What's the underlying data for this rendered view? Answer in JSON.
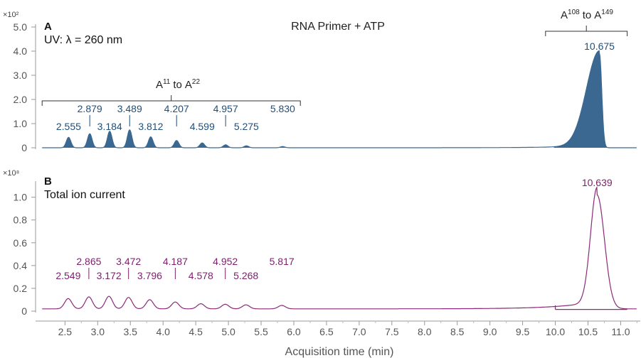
{
  "chart_data": {
    "title": "RNA Primer + ATP",
    "xlabel": "Acquisition time (min)",
    "xlim": [
      2.05,
      11.3
    ],
    "xticks": [
      "2.5",
      "3.0",
      "3.5",
      "4.0",
      "4.5",
      "5.0",
      "5.5",
      "6.0",
      "6.5",
      "7.0",
      "7.5",
      "8.0",
      "8.5",
      "9.0",
      "9.5",
      "10.0",
      "10.5",
      "11.0"
    ],
    "panels": [
      {
        "type": "line",
        "panel": "A",
        "subtitle": "UV: λ = 260 nm",
        "multiplier": "×10²",
        "color": "#3a6890",
        "label_color": "#1f4e79",
        "ylim": [
          0,
          5.0
        ],
        "yticks": [
          "0",
          "1.0",
          "2.0",
          "3.0",
          "4.0",
          "5.0"
        ],
        "peaks": [
          {
            "x": 2.555,
            "label": "2.555",
            "y": 0.43
          },
          {
            "x": 2.879,
            "label": "2.879",
            "y": 0.58
          },
          {
            "x": 3.184,
            "label": "3.184",
            "y": 0.68
          },
          {
            "x": 3.489,
            "label": "3.489",
            "y": 0.74
          },
          {
            "x": 3.812,
            "label": "3.812",
            "y": 0.45
          },
          {
            "x": 4.207,
            "label": "4.207",
            "y": 0.3
          },
          {
            "x": 4.599,
            "label": "4.599",
            "y": 0.2
          },
          {
            "x": 4.957,
            "label": "4.957",
            "y": 0.12
          },
          {
            "x": 5.275,
            "label": "5.275",
            "y": 0.08
          },
          {
            "x": 5.83,
            "label": "5.830",
            "y": 0.05
          },
          {
            "x": 10.675,
            "label": "10.675",
            "y": 3.9
          }
        ],
        "groups": [
          {
            "label_base_1": "A",
            "label_sup_1": "11",
            "label_mid": "to",
            "label_base_2": "A",
            "label_sup_2": "22",
            "x_start": 2.15,
            "x_end": 6.1
          },
          {
            "label_base_1": "A",
            "label_sup_1": "108",
            "label_mid": "to",
            "label_base_2": "A",
            "label_sup_2": "149",
            "x_start": 9.85,
            "x_end": 11.1
          }
        ]
      },
      {
        "type": "line",
        "panel": "B",
        "subtitle": "Total ion current",
        "multiplier": "×10⁸",
        "color": "#8b2a78",
        "label_color": "#7b1f6a",
        "ylim": [
          0,
          1.06
        ],
        "yticks": [
          "0",
          "0.2",
          "0.4",
          "0.6",
          "0.8",
          "1.0"
        ],
        "peaks": [
          {
            "x": 2.549,
            "label": "2.549",
            "y": 0.09
          },
          {
            "x": 2.865,
            "label": "2.865",
            "y": 0.105
          },
          {
            "x": 3.172,
            "label": "3.172",
            "y": 0.11
          },
          {
            "x": 3.472,
            "label": "3.472",
            "y": 0.1
          },
          {
            "x": 3.796,
            "label": "3.796",
            "y": 0.08
          },
          {
            "x": 4.187,
            "label": "4.187",
            "y": 0.06
          },
          {
            "x": 4.578,
            "label": "4.578",
            "y": 0.045
          },
          {
            "x": 4.952,
            "label": "4.952",
            "y": 0.04
          },
          {
            "x": 5.268,
            "label": "5.268",
            "y": 0.035
          },
          {
            "x": 5.817,
            "label": "5.817",
            "y": 0.03
          },
          {
            "x": 10.639,
            "label": "10.639",
            "y": 1.0
          }
        ]
      }
    ]
  }
}
